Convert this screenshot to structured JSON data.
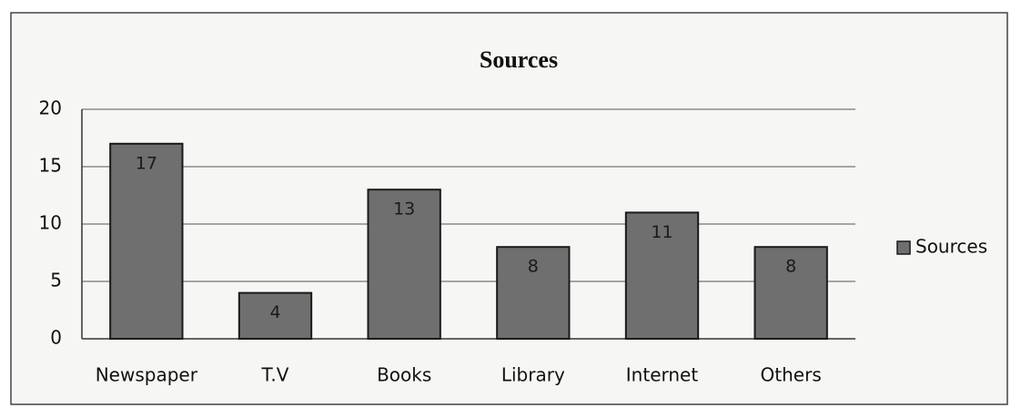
{
  "chart_data": {
    "type": "bar",
    "title": "Sources",
    "categories": [
      "Newspaper",
      "T.V",
      "Books",
      "Library",
      "Internet",
      "Others"
    ],
    "series": [
      {
        "name": "Sources",
        "color": "#6f6f6f",
        "values": [
          17,
          4,
          13,
          8,
          11,
          8
        ]
      }
    ],
    "ylim": [
      0,
      20
    ],
    "yticks": [
      0,
      5,
      10,
      15,
      20
    ],
    "grid": true,
    "legend": "right"
  }
}
